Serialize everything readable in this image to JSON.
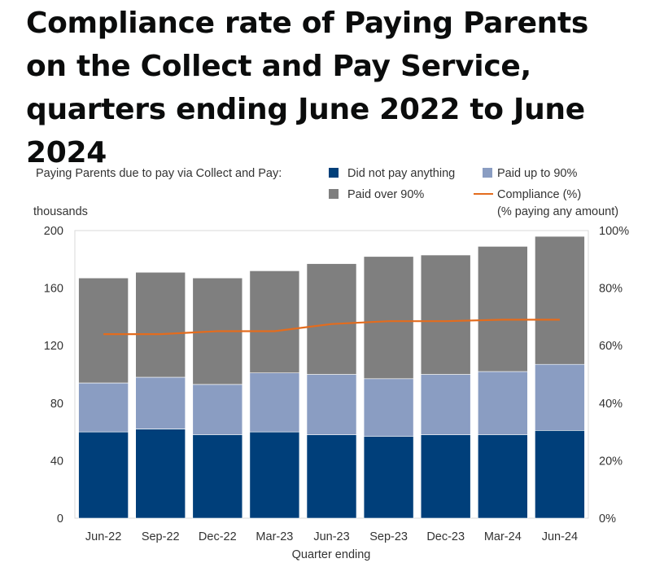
{
  "title": "Compliance rate of Paying Parents on the Collect and Pay Service, quarters ending June 2022 to June 2024",
  "chart_data": {
    "type": "bar",
    "stacked": true,
    "legend_title": "Paying Parents due to pay via Collect and Pay:",
    "legend_placement": "top",
    "xlabel": "Quarter ending",
    "ylabel": "thousands",
    "ylabel_right": "",
    "ylim": [
      0,
      200
    ],
    "yticks": [
      "0",
      "40",
      "80",
      "120",
      "160",
      "200"
    ],
    "ylim_right": [
      0,
      100
    ],
    "yticks_right": [
      "0%",
      "20%",
      "40%",
      "60%",
      "80%",
      "100%"
    ],
    "grid": false,
    "categories": [
      "Jun-22",
      "Sep-22",
      "Dec-22",
      "Mar-23",
      "Jun-23",
      "Sep-23",
      "Dec-23",
      "Mar-24",
      "Jun-24"
    ],
    "series": [
      {
        "name": "Did not pay anything",
        "color": "#003f7a",
        "values": [
          60,
          62,
          58,
          60,
          58,
          57,
          58,
          58,
          61
        ]
      },
      {
        "name": "Paid up to 90%",
        "color": "#8a9dc2",
        "values": [
          34,
          36,
          35,
          41,
          42,
          40,
          42,
          44,
          46
        ]
      },
      {
        "name": "Paid over 90%",
        "color": "#7f7f7f",
        "values": [
          73,
          73,
          74,
          71,
          77,
          85,
          83,
          87,
          89
        ]
      }
    ],
    "line_series": {
      "name": "Compliance (%)",
      "name_sub": "(% paying any amount)",
      "color": "#e36c1e",
      "axis": "right",
      "values": [
        64,
        64,
        65,
        65,
        67.5,
        68.5,
        68.5,
        69,
        69
      ]
    }
  }
}
